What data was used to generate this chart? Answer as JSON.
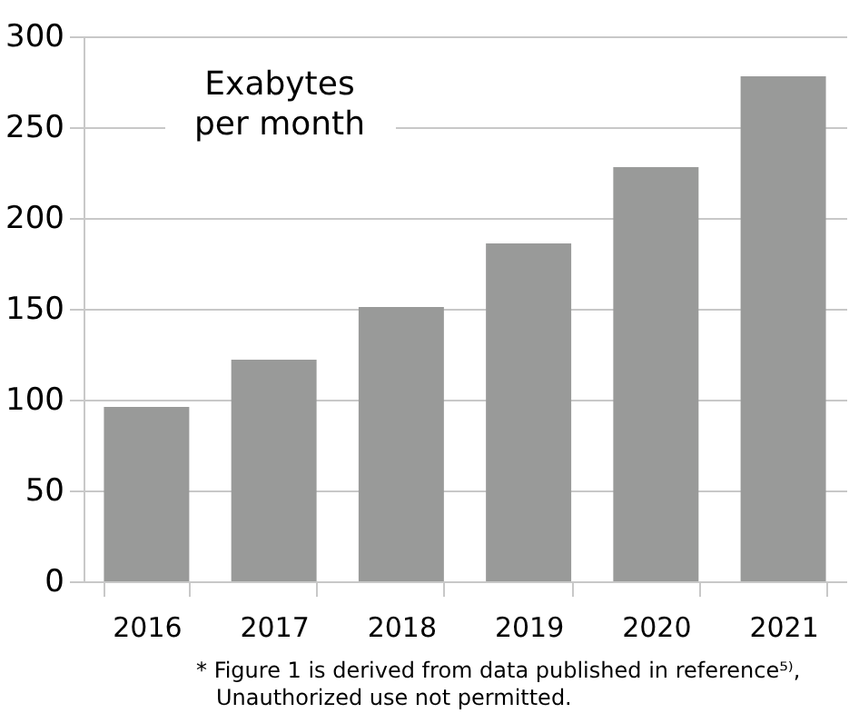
{
  "chart_data": {
    "type": "bar",
    "ylabel": "Exabytes per month",
    "categories": [
      "2016",
      "2017",
      "2018",
      "2019",
      "2020",
      "2021"
    ],
    "values": [
      96,
      122,
      151,
      186,
      228,
      278
    ],
    "color": "#999a99",
    "ylim": [
      0,
      300
    ],
    "yticks": [
      0,
      50,
      100,
      150,
      200,
      250,
      300
    ],
    "grid": "y",
    "annotations": [
      "* Figure 1 is derived from data published in reference⁵⁾,",
      "Unauthorized use not permitted."
    ]
  }
}
